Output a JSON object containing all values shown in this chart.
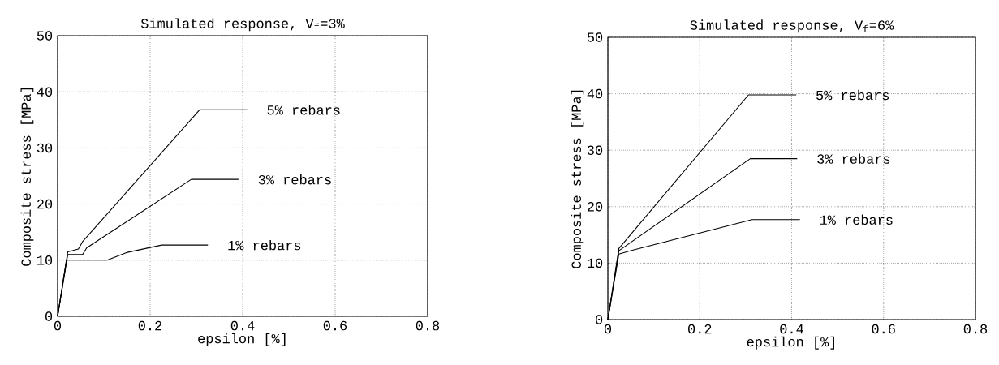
{
  "chart_data": [
    {
      "type": "line",
      "title": "Simulated response, V$_{f}$=3%",
      "xlabel": "epsilon [%]",
      "ylabel": "Composite stress [MPa]",
      "xlim": [
        0,
        0.8
      ],
      "ylim": [
        0,
        50
      ],
      "xticks": [
        0,
        0.2,
        0.4,
        0.6,
        0.8
      ],
      "yticks": [
        0,
        10,
        20,
        30,
        40,
        50
      ],
      "grid": true,
      "marker": "none",
      "line_style": "solid",
      "series": [
        {
          "name": "5% rebars",
          "color": "#000000",
          "x": [
            0,
            0.022,
            0.045,
            0.054,
            0.307,
            0.41
          ],
          "values": [
            0,
            11.5,
            12.0,
            13.3,
            36.8,
            36.8
          ]
        },
        {
          "name": "3% rebars",
          "color": "#000000",
          "x": [
            0,
            0.022,
            0.054,
            0.063,
            0.289,
            0.391
          ],
          "values": [
            0,
            11.0,
            11.0,
            12.2,
            24.4,
            24.4
          ]
        },
        {
          "name": "1% rebars",
          "color": "#000000",
          "x": [
            0,
            0.019,
            0.107,
            0.151,
            0.225,
            0.325
          ],
          "values": [
            0,
            10.0,
            10.0,
            11.4,
            12.7,
            12.7
          ]
        }
      ]
    },
    {
      "type": "line",
      "title": "Simulated response, V$_{f}$=6%",
      "xlabel": "epsilon [%]",
      "ylabel": "Composite stress [MPa]",
      "xlim": [
        0,
        0.8
      ],
      "ylim": [
        0,
        50
      ],
      "xticks": [
        0,
        0.2,
        0.4,
        0.6,
        0.8
      ],
      "yticks": [
        0,
        10,
        20,
        30,
        40,
        50
      ],
      "grid": true,
      "marker": "none",
      "line_style": "solid",
      "series": [
        {
          "name": "5% rebars",
          "color": "#000000",
          "x": [
            0,
            0.024,
            0.306,
            0.41
          ],
          "values": [
            0,
            12.6,
            39.8,
            39.8
          ]
        },
        {
          "name": "3% rebars",
          "color": "#000000",
          "x": [
            0,
            0.024,
            0.31,
            0.412
          ],
          "values": [
            0,
            12.2,
            28.5,
            28.5
          ]
        },
        {
          "name": "1% rebars",
          "color": "#000000",
          "x": [
            0,
            0.024,
            0.05,
            0.314,
            0.418
          ],
          "values": [
            0,
            11.6,
            12.2,
            17.7,
            17.7
          ]
        }
      ]
    }
  ]
}
